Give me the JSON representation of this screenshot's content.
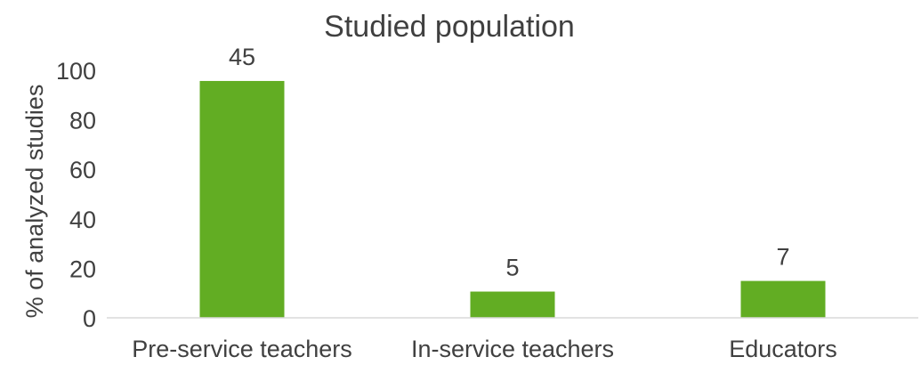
{
  "chart_data": {
    "type": "bar",
    "title": "Studied population",
    "xlabel": "",
    "ylabel": "% of analyzed studies",
    "ylim": [
      0,
      100
    ],
    "yticks": [
      0,
      20,
      40,
      60,
      80,
      100
    ],
    "categories": [
      "Pre-service teachers",
      "In-service teachers",
      "Educators"
    ],
    "values": [
      95.7,
      10.6,
      14.9
    ],
    "data_labels": [
      "45",
      "5",
      "7"
    ],
    "grid": false,
    "legend": "none",
    "colors": {
      "bar": "#62ad23",
      "text": "#404040",
      "axis": "#d9d9d9"
    }
  }
}
